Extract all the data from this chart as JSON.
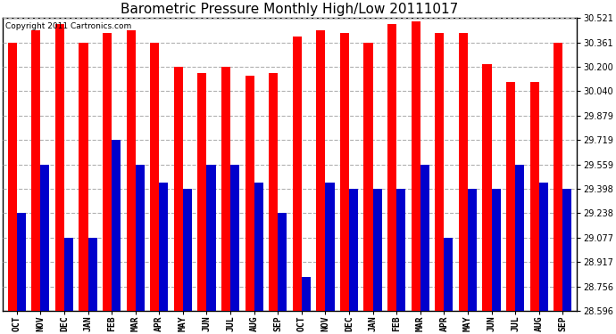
{
  "title": "Barometric Pressure Monthly High/Low 20111017",
  "copyright_text": "Copyright 2011 Cartronics.com",
  "categories": [
    "OCT",
    "NOV",
    "DEC",
    "JAN",
    "FEB",
    "MAR",
    "APR",
    "MAY",
    "JUN",
    "JUL",
    "AUG",
    "SEP",
    "OCT",
    "NOV",
    "DEC",
    "JAN",
    "FEB",
    "MAR",
    "APR",
    "MAY",
    "JUN",
    "JUL",
    "AUG",
    "SEP"
  ],
  "highs": [
    30.361,
    30.441,
    30.481,
    30.361,
    30.421,
    30.441,
    30.361,
    30.2,
    30.16,
    30.2,
    30.14,
    30.16,
    30.401,
    30.441,
    30.421,
    30.361,
    30.481,
    30.501,
    30.421,
    30.421,
    30.221,
    30.1,
    30.1,
    30.361
  ],
  "lows": [
    29.238,
    29.559,
    29.077,
    29.077,
    29.719,
    29.559,
    29.438,
    29.398,
    29.559,
    29.559,
    29.438,
    29.238,
    28.82,
    29.438,
    29.398,
    29.398,
    29.398,
    29.559,
    29.077,
    29.398,
    29.398,
    29.559,
    29.438,
    29.398
  ],
  "high_color": "#ff0000",
  "low_color": "#0000cc",
  "background_color": "#ffffff",
  "plot_bg_color": "#ffffff",
  "grid_color": "#b0b0b0",
  "ylim_min": 28.596,
  "ylim_max": 30.521,
  "yticks": [
    28.596,
    28.756,
    28.917,
    29.077,
    29.238,
    29.398,
    29.559,
    29.719,
    29.879,
    30.04,
    30.2,
    30.361,
    30.521
  ],
  "title_fontsize": 11,
  "copyright_fontsize": 6.5,
  "tick_fontsize": 7,
  "bar_width": 0.38,
  "fig_width": 6.9,
  "fig_height": 3.75,
  "dpi": 100
}
